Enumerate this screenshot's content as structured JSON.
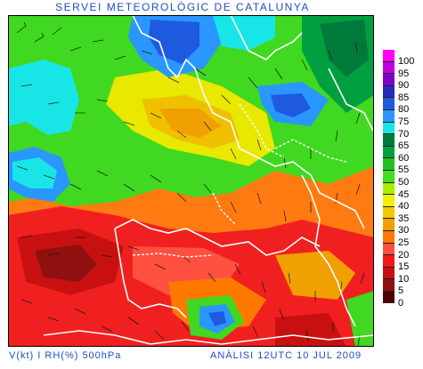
{
  "header": {
    "title": "SERVEI METEOROLÒGIC DE CATALUNYA"
  },
  "footer": {
    "left": "V(kt) I RH(%) 500hPa",
    "right": "ANÀLISI 12UTC 10 JUL 2009"
  },
  "legend": {
    "entries": [
      {
        "label": "100",
        "color": "#ff00ff"
      },
      {
        "label": "95",
        "color": "#c000e0"
      },
      {
        "label": "90",
        "color": "#8000c8"
      },
      {
        "label": "85",
        "color": "#2a2ab8"
      },
      {
        "label": "80",
        "color": "#1e5ae0"
      },
      {
        "label": "75",
        "color": "#2a96ff"
      },
      {
        "label": "70",
        "color": "#18e6e6"
      },
      {
        "label": "65",
        "color": "#007a3a"
      },
      {
        "label": "60",
        "color": "#00a040"
      },
      {
        "label": "55",
        "color": "#20c020"
      },
      {
        "label": "50",
        "color": "#40e020"
      },
      {
        "label": "45",
        "color": "#a8f000"
      },
      {
        "label": "40",
        "color": "#f0f000"
      },
      {
        "label": "35",
        "color": "#f0c800"
      },
      {
        "label": "30",
        "color": "#f0a000"
      },
      {
        "label": "25",
        "color": "#ff7800"
      },
      {
        "label": "20",
        "color": "#ff5040"
      },
      {
        "label": "15",
        "color": "#f01818"
      },
      {
        "label": "10",
        "color": "#c81010"
      },
      {
        "label": "5",
        "color": "#901010"
      },
      {
        "label": "0",
        "color": "#500000"
      }
    ]
  }
}
